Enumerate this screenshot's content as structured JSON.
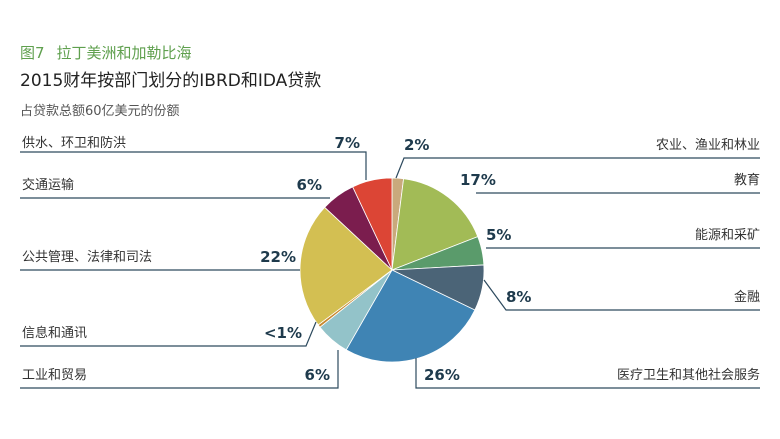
{
  "header": {
    "figure_number": "图7",
    "figure_region": "拉丁美洲和加勒比海",
    "title": "2015财年按部门划分的IBRD和IDA贷款",
    "subtitle": "占贷款总额60亿美元的份额"
  },
  "chart_data": {
    "type": "pie",
    "title": "2015财年按部门划分的IBRD和IDA贷款",
    "subtitle": "占贷款总额60亿美元的份额",
    "unit": "%",
    "slices": [
      {
        "name": "农业、渔业和林业",
        "value": 2,
        "label": "2%",
        "color": "#c9a97c"
      },
      {
        "name": "教育",
        "value": 17,
        "label": "17%",
        "color": "#a2bb56"
      },
      {
        "name": "能源和采矿",
        "value": 5,
        "label": "5%",
        "color": "#5a9b6b"
      },
      {
        "name": "金融",
        "value": 8,
        "label": "8%",
        "color": "#4b6477"
      },
      {
        "name": "医疗卫生和其他社会服务",
        "value": 26,
        "label": "26%",
        "color": "#3f84b4"
      },
      {
        "name": "工业和贸易",
        "value": 6,
        "label": "6%",
        "color": "#93c3c9"
      },
      {
        "name": "信息和通讯",
        "value": 0.5,
        "label": "<1%",
        "color": "#c7882f"
      },
      {
        "name": "公共管理、法律和司法",
        "value": 22,
        "label": "22%",
        "color": "#d3bf52"
      },
      {
        "name": "交通运输",
        "value": 6,
        "label": "6%",
        "color": "#7b1d4e"
      },
      {
        "name": "供水、环卫和防洪",
        "value": 7,
        "label": "7%",
        "color": "#dc4535"
      }
    ]
  }
}
